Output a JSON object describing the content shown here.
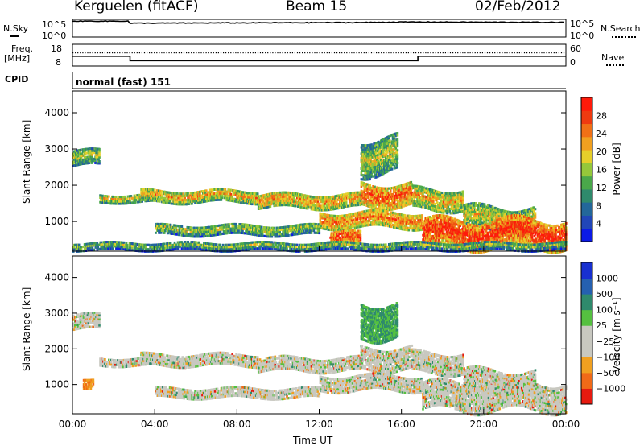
{
  "header": {
    "station": "Kerguelen (fitACF)",
    "beam": "Beam 15",
    "date": "02/Feb/2012"
  },
  "top_panels": {
    "nsky_label": "N.Sky",
    "nsky_tick_top": "10^5",
    "nsky_tick_bottom": "10^0",
    "nsearch_label": "N.Search",
    "nsearch_tick_top": "10^5",
    "nsearch_tick_bottom": "10^0",
    "freq_label_line1": "Freq.",
    "freq_label_line2": "[MHz]",
    "freq_tick_top": "18",
    "freq_tick_bottom": "8",
    "nave_label": "Nave",
    "nave_tick_top": "60",
    "nave_tick_bottom": "0",
    "cpid_label": "CPID",
    "cpid_value": "normal (fast) 151"
  },
  "chart_data": [
    {
      "type": "heatmap",
      "name": "power",
      "ylabel": "Slant Range [km]",
      "ylim": [
        180,
        4600
      ],
      "yticks": [
        1000,
        2000,
        3000,
        4000
      ],
      "xlim": [
        0,
        24
      ],
      "colorbar_label": "Power [dB]",
      "colorbar_ticks": [
        "4",
        "8",
        "12",
        "16",
        "20",
        "24",
        "28"
      ],
      "colorbar_colors": [
        "#0b1ae6",
        "#2146b8",
        "#23679a",
        "#2f8a6c",
        "#4aa84a",
        "#95c83a",
        "#e6cf2a",
        "#f0a020",
        "#f07016",
        "#ee3a10",
        "#ff1a0a"
      ],
      "bands": [
        {
          "x": [
            0.0,
            1.3
          ],
          "r": [
            2500,
            2950
          ],
          "level": 0.35
        },
        {
          "x": [
            1.3,
            4.0
          ],
          "r": [
            1500,
            1750
          ],
          "level": 0.45
        },
        {
          "x": [
            3.3,
            9.0
          ],
          "r": [
            1500,
            1850
          ],
          "level": 0.55
        },
        {
          "x": [
            9.0,
            14.0
          ],
          "r": [
            1350,
            1750
          ],
          "level": 0.62
        },
        {
          "x": [
            14.0,
            16.5
          ],
          "r": [
            1400,
            2050
          ],
          "level": 0.78
        },
        {
          "x": [
            16.5,
            19.0
          ],
          "r": [
            1300,
            1900
          ],
          "level": 0.55
        },
        {
          "x": [
            19.0,
            22.5
          ],
          "r": [
            700,
            1400
          ],
          "level": 0.45
        },
        {
          "x": [
            4.0,
            12.0
          ],
          "r": [
            600,
            900
          ],
          "level": 0.35
        },
        {
          "x": [
            12.0,
            17.0
          ],
          "r": [
            800,
            1250
          ],
          "level": 0.7
        },
        {
          "x": [
            17.0,
            24.0
          ],
          "r": [
            250,
            1050
          ],
          "level": 0.9
        },
        {
          "x": [
            12.5,
            14.0
          ],
          "r": [
            300,
            700
          ],
          "level": 0.85
        },
        {
          "x": [
            0.0,
            24.0
          ],
          "r": [
            180,
            420
          ],
          "level": 0.25
        },
        {
          "x": [
            14.0,
            15.8
          ],
          "r": [
            2300,
            3300
          ],
          "level": 0.4
        }
      ]
    },
    {
      "type": "heatmap",
      "name": "velocity",
      "ylabel": "Slant Range [km]",
      "ylim": [
        180,
        4600
      ],
      "yticks": [
        1000,
        2000,
        3000,
        4000
      ],
      "xlim": [
        0,
        24
      ],
      "xticks": [
        "00:00",
        "04:00",
        "08:00",
        "12:00",
        "16:00",
        "20:00",
        "00:00"
      ],
      "xlabel": "Time UT",
      "colorbar_label": "Velocity [m s⁻¹]",
      "colorbar_ticks": [
        "1000",
        "500",
        "100",
        "25",
        "−25",
        "−100",
        "−500",
        "−1000"
      ],
      "colorbar_colors": [
        "#1830d0",
        "#2560b0",
        "#2f8a6c",
        "#55c040",
        "#c8c8c0",
        "#c8c8c0",
        "#f0a020",
        "#f06a18",
        "#e61a10"
      ],
      "bands": [
        {
          "x": [
            0.0,
            1.3
          ],
          "r": [
            2500,
            2950
          ],
          "level": 0.5
        },
        {
          "x": [
            1.3,
            4.0
          ],
          "r": [
            1500,
            1750
          ],
          "level": 0.5
        },
        {
          "x": [
            3.3,
            9.0
          ],
          "r": [
            1500,
            1850
          ],
          "level": 0.5
        },
        {
          "x": [
            9.0,
            14.0
          ],
          "r": [
            1350,
            1750
          ],
          "level": 0.5
        },
        {
          "x": [
            14.0,
            16.5
          ],
          "r": [
            1400,
            2050
          ],
          "level": 0.5
        },
        {
          "x": [
            16.5,
            19.0
          ],
          "r": [
            1300,
            1900
          ],
          "level": 0.5
        },
        {
          "x": [
            19.0,
            22.5
          ],
          "r": [
            700,
            1400
          ],
          "level": 0.5
        },
        {
          "x": [
            4.0,
            12.0
          ],
          "r": [
            600,
            900
          ],
          "level": 0.5
        },
        {
          "x": [
            12.0,
            17.0
          ],
          "r": [
            800,
            1250
          ],
          "level": 0.5
        },
        {
          "x": [
            17.0,
            24.0
          ],
          "r": [
            250,
            1050
          ],
          "level": 0.5
        },
        {
          "x": [
            0.5,
            1.0
          ],
          "r": [
            900,
            1200
          ],
          "level": 0.8
        },
        {
          "x": [
            14.0,
            15.8
          ],
          "r": [
            2300,
            3300
          ],
          "level": 0.35
        }
      ]
    }
  ],
  "freq_series": {
    "x": [
      0,
      2.8,
      2.8,
      16.8,
      16.8,
      24
    ],
    "freq": [
      12.5,
      12.5,
      10.5,
      10.5,
      12.5,
      12.5
    ]
  },
  "sky_series": {
    "x": [
      0,
      2.8,
      2.8,
      14.0,
      16.0,
      24
    ],
    "level": [
      0.9,
      0.9,
      0.78,
      0.82,
      0.85,
      0.83
    ]
  }
}
